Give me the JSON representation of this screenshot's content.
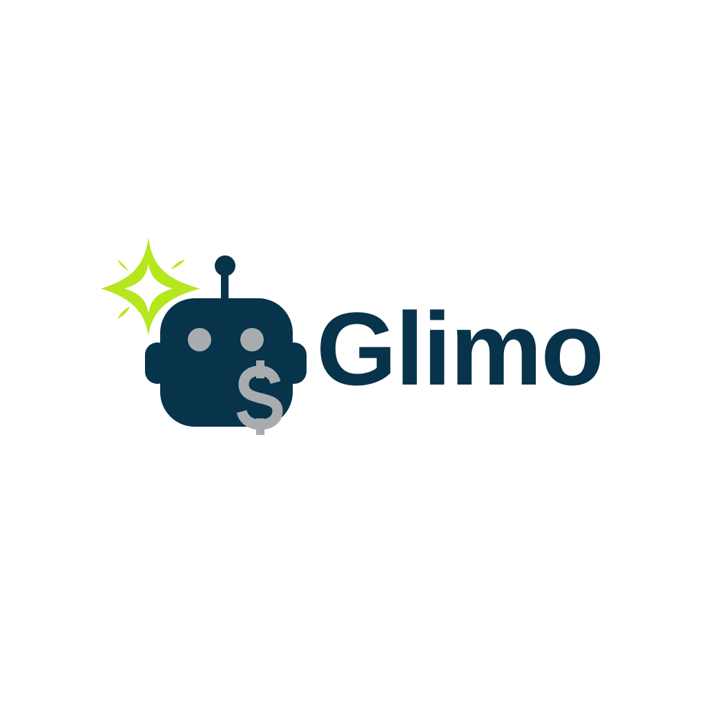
{
  "brand": {
    "name": "Glimo",
    "currency_symbol": "$",
    "colors": {
      "primary": "#07334b",
      "accent": "#b6e61e",
      "neutral": "#a8acae",
      "background": "#ffffff"
    },
    "icons": [
      "sparkle-icon",
      "robot-head-icon",
      "dollar-icon"
    ]
  }
}
